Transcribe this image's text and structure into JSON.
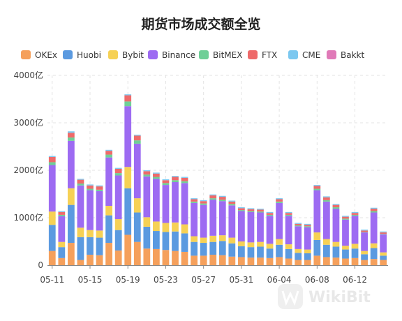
{
  "chart_data": {
    "type": "bar",
    "stacked": true,
    "title": "期货市场成交额全览",
    "legend_position": "top",
    "grid": true,
    "ylim": [
      0,
      4000
    ],
    "yticks": [
      {
        "value": 0,
        "label": "0"
      },
      {
        "value": 1000,
        "label": "1000亿"
      },
      {
        "value": 2000,
        "label": "2000亿"
      },
      {
        "value": 3000,
        "label": "3000亿"
      },
      {
        "value": 4000,
        "label": "4000亿"
      }
    ],
    "categories": [
      "05-11",
      "05-12",
      "05-13",
      "05-14",
      "05-15",
      "05-16",
      "05-17",
      "05-18",
      "05-19",
      "05-20",
      "05-21",
      "05-22",
      "05-23",
      "05-24",
      "05-25",
      "05-26",
      "05-27",
      "05-28",
      "05-29",
      "05-30",
      "05-31",
      "06-01",
      "06-02",
      "06-03",
      "06-04",
      "06-05",
      "06-06",
      "06-07",
      "06-08",
      "06-09",
      "06-10",
      "06-11",
      "06-12",
      "06-13",
      "06-14",
      "06-15"
    ],
    "xtick_labels": [
      {
        "index": 0,
        "label": "05-11"
      },
      {
        "index": 4,
        "label": "05-15"
      },
      {
        "index": 8,
        "label": "05-19"
      },
      {
        "index": 12,
        "label": "05-23"
      },
      {
        "index": 16,
        "label": "05-27"
      },
      {
        "index": 20,
        "label": "05-31"
      },
      {
        "index": 24,
        "label": "06-04"
      },
      {
        "index": 28,
        "label": "06-08"
      },
      {
        "index": 32,
        "label": "06-12"
      }
    ],
    "series": [
      {
        "name": "OKEx",
        "color": "#f5a05c",
        "values": [
          300,
          150,
          470,
          110,
          220,
          210,
          470,
          310,
          640,
          490,
          350,
          340,
          320,
          300,
          280,
          200,
          200,
          220,
          210,
          180,
          170,
          160,
          160,
          150,
          170,
          140,
          110,
          110,
          200,
          170,
          160,
          140,
          150,
          110,
          130,
          110
        ]
      },
      {
        "name": "Huobi",
        "color": "#5b9ae0",
        "values": [
          550,
          230,
          800,
          480,
          370,
          370,
          580,
          430,
          980,
          620,
          460,
          380,
          380,
          410,
          390,
          290,
          270,
          270,
          300,
          280,
          230,
          220,
          230,
          200,
          260,
          200,
          150,
          140,
          330,
          260,
          230,
          190,
          200,
          120,
          230,
          90
        ]
      },
      {
        "name": "Bybit",
        "color": "#f6d155",
        "values": [
          280,
          110,
          350,
          200,
          150,
          150,
          200,
          230,
          450,
          300,
          200,
          200,
          190,
          190,
          190,
          120,
          110,
          130,
          120,
          120,
          100,
          100,
          100,
          100,
          120,
          100,
          80,
          80,
          160,
          120,
          100,
          80,
          100,
          70,
          100,
          70
        ]
      },
      {
        "name": "Binance",
        "color": "#9d6bf2",
        "values": [
          980,
          540,
          1000,
          890,
          840,
          830,
          1020,
          920,
          1280,
          1150,
          860,
          900,
          800,
          850,
          870,
          700,
          690,
          760,
          720,
          680,
          640,
          640,
          620,
          590,
          760,
          600,
          480,
          470,
          890,
          790,
          700,
          550,
          590,
          390,
          650,
          380
        ]
      },
      {
        "name": "BitMEX",
        "color": "#6fcf97",
        "values": [
          60,
          30,
          70,
          40,
          30,
          30,
          60,
          50,
          100,
          70,
          40,
          40,
          40,
          40,
          40,
          30,
          30,
          30,
          30,
          30,
          20,
          20,
          20,
          20,
          30,
          20,
          20,
          20,
          30,
          30,
          30,
          20,
          20,
          10,
          30,
          10
        ]
      },
      {
        "name": "FTX",
        "color": "#ee6a6a",
        "values": [
          110,
          60,
          100,
          80,
          70,
          70,
          80,
          90,
          130,
          100,
          70,
          70,
          60,
          70,
          70,
          50,
          50,
          60,
          60,
          50,
          40,
          40,
          40,
          40,
          50,
          40,
          30,
          30,
          60,
          60,
          50,
          40,
          40,
          30,
          50,
          30
        ]
      },
      {
        "name": "CME",
        "color": "#7cc8f0",
        "values": [
          20,
          20,
          30,
          20,
          20,
          20,
          20,
          20,
          20,
          20,
          20,
          20,
          20,
          20,
          20,
          20,
          20,
          20,
          20,
          20,
          20,
          20,
          20,
          20,
          20,
          20,
          20,
          20,
          20,
          20,
          20,
          20,
          20,
          20,
          20,
          20
        ]
      },
      {
        "name": "Bakkt",
        "color": "#e07ab8",
        "values": [
          0,
          0,
          0,
          0,
          0,
          0,
          0,
          0,
          0,
          0,
          0,
          0,
          0,
          0,
          0,
          0,
          0,
          0,
          0,
          0,
          0,
          0,
          0,
          0,
          0,
          0,
          0,
          0,
          0,
          0,
          0,
          0,
          0,
          0,
          0,
          0
        ]
      }
    ]
  },
  "watermark": {
    "text": "WikiBit",
    "icon": "wikibit-logo-icon"
  }
}
